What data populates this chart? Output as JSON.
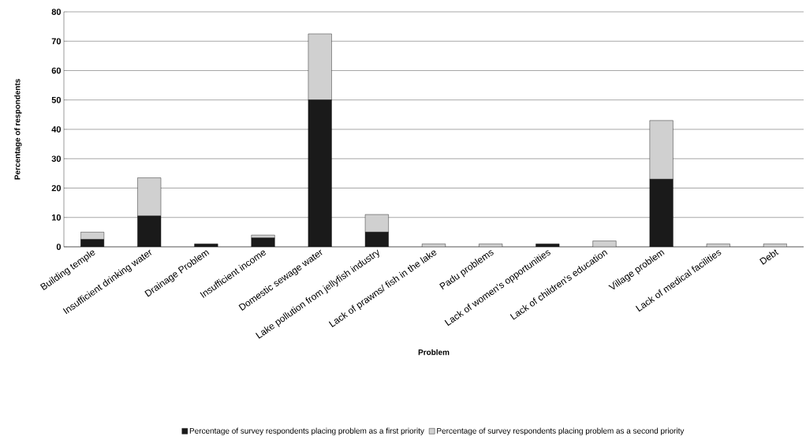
{
  "chart_data": {
    "type": "bar",
    "stacked": true,
    "xlabel": "Problem",
    "ylabel": "Percentage of respondents",
    "categories": [
      "Building temple",
      "Insufficient drinking water",
      "Drainage Problem",
      "Insufficient income",
      "Domestic sewage water",
      "Lake pollution from jellyfish industry",
      "Lack of prawns/ fish in the lake",
      "Padu problems",
      "Lack of women's opportunities",
      "Lack of children's education",
      "Village problem",
      "Lack of medical facilities",
      "Debt"
    ],
    "series": [
      {
        "name": "Percentage of survey respondents placing problem as a first priority",
        "color": "#1a1a1a",
        "values": [
          2.5,
          10.5,
          1,
          3,
          50,
          5,
          0,
          0,
          1,
          0,
          23,
          0,
          0
        ]
      },
      {
        "name": "Percentage of survey respondents placing problem as a second priority",
        "color": "#d0d0d0",
        "values": [
          2.5,
          13,
          0,
          1,
          22.5,
          6,
          1,
          1,
          0,
          2,
          20,
          1,
          1
        ]
      }
    ],
    "ylim": [
      0,
      80
    ],
    "yticks": [
      0,
      10,
      20,
      30,
      40,
      50,
      60,
      70,
      80
    ],
    "grid": "y",
    "legend": "bottom"
  }
}
